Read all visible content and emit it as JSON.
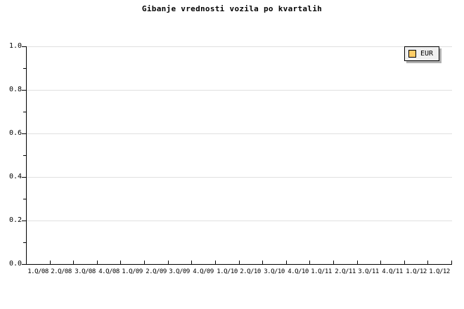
{
  "chart_data": {
    "type": "line",
    "title": "Gibanje vrednosti vozila po kvartalih",
    "categories": [
      "1.Q/08",
      "2.Q/08",
      "3.Q/08",
      "4.Q/08",
      "1.Q/09",
      "2.Q/09",
      "3.Q/09",
      "4.Q/09",
      "1.Q/10",
      "2.Q/10",
      "3.Q/10",
      "4.Q/10",
      "1.Q/11",
      "2.Q/11",
      "3.Q/11",
      "4.Q/11",
      "1.Q/12",
      "1.Q/12"
    ],
    "series": [
      {
        "name": "EUR",
        "color": "#FFCC66",
        "values": []
      }
    ],
    "ylim": [
      0.0,
      1.0
    ],
    "ytick_labels": [
      "1.0",
      "0.8",
      "0.6",
      "0.4",
      "0.2",
      "0.0"
    ],
    "y_major_step": 0.2,
    "y_minor_step": 0.1,
    "grid": true,
    "legend_position": "top-right"
  },
  "colors": {
    "background": "#ffffff",
    "axis": "#000000",
    "gridline": "#e0e0e0",
    "legend_background": "#f0f0f0",
    "legend_shadow": "#b0b0b0",
    "series_eur": "#FFCC66"
  }
}
